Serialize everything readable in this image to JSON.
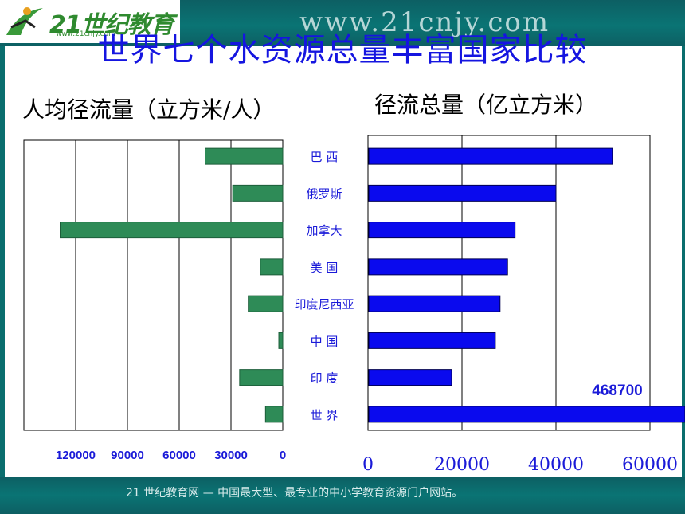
{
  "header": {
    "logo_text": "21世纪教育",
    "logo_subtext": "www.21cnjy.com",
    "site_url": "www.21cnjy.com"
  },
  "page_title": "世界七个水资源总量丰富国家比较",
  "footer_text": "21 世纪教育网 — 中国最大型、最专业的中小学教育资源门户网站。",
  "colors": {
    "left_bar": "#2e8b57",
    "right_bar": "#0a0aee",
    "title": "#1515e0",
    "band": "#0a7474"
  },
  "chart_data": [
    {
      "type": "bar",
      "orientation": "horizontal",
      "direction": "right-to-left",
      "title": "人均径流量（立方米/人）",
      "categories": [
        "巴  西",
        "俄罗斯",
        "加拿大",
        "美  国",
        "印度尼西亚",
        "中  国",
        "印  度",
        "世  界"
      ],
      "values": [
        45000,
        29000,
        129000,
        13000,
        20000,
        2300,
        25000,
        10000
      ],
      "xlim": [
        0,
        150000
      ],
      "xticks": [
        120000,
        90000,
        60000,
        30000,
        0
      ],
      "grid": true
    },
    {
      "type": "bar",
      "orientation": "horizontal",
      "title": "径流总量（亿立方米）",
      "categories": [
        "巴  西",
        "俄罗斯",
        "加拿大",
        "美  国",
        "印度尼西亚",
        "中  国",
        "印  度",
        "世  界"
      ],
      "values": [
        52000,
        40000,
        31300,
        29700,
        28100,
        27100,
        17800,
        468700
      ],
      "data_labels": [
        "",
        "",
        "",
        "",
        "",
        "",
        "",
        "468700"
      ],
      "xlim": [
        0,
        60000
      ],
      "xticks": [
        0,
        20000,
        40000,
        60000
      ],
      "grid": true
    }
  ]
}
